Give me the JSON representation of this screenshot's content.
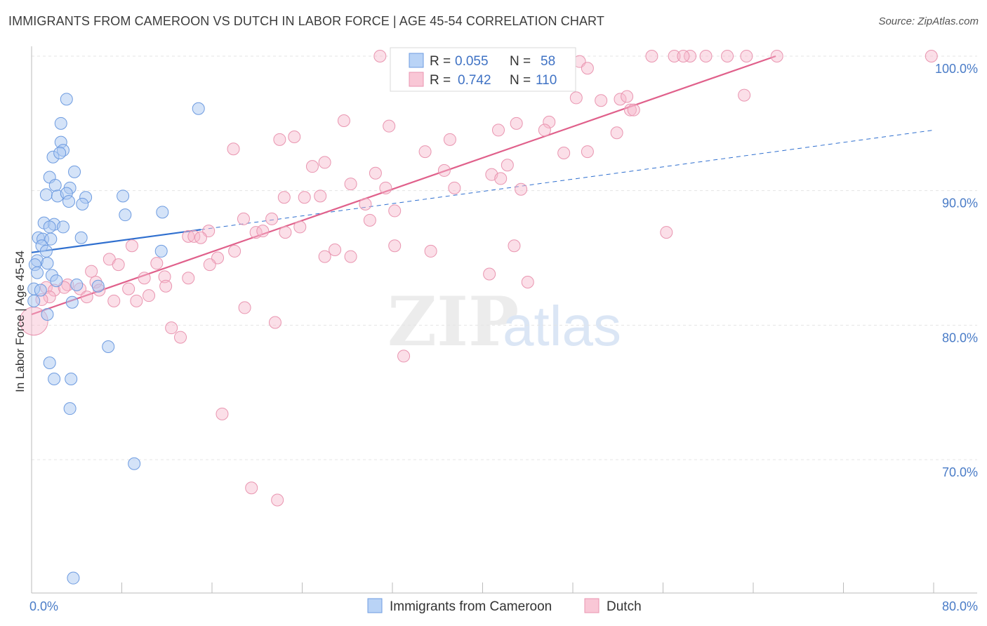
{
  "title": "IMMIGRANTS FROM CAMEROON VS DUTCH IN LABOR FORCE | AGE 45-54 CORRELATION CHART",
  "source": "Source: ZipAtlas.com",
  "watermark": {
    "zip": "ZIP",
    "atlas": "atlas"
  },
  "colors": {
    "blue_fill": "#a9c8f2",
    "blue_stroke": "#6d9be0",
    "blue_line": "#2f6fcf",
    "pink_fill": "#f6b9cc",
    "pink_stroke": "#e995b0",
    "pink_line": "#e0608b",
    "grid": "#e4e4e4",
    "tick_label": "#4a7cc7"
  },
  "legend": {
    "rows": [
      {
        "r_label": "R =",
        "r_value": "0.055",
        "n_label": "N =",
        "n_value": "58",
        "color": "blue"
      },
      {
        "r_label": "R =",
        "r_value": "0.742",
        "n_label": "N =",
        "n_value": "110",
        "color": "pink"
      }
    ]
  },
  "chart_data": {
    "type": "scatter",
    "title": "IMMIGRANTS FROM CAMEROON VS DUTCH IN LABOR FORCE | AGE 45-54 CORRELATION CHART",
    "xlabel": "",
    "ylabel": "In Labor Force | Age 45-54",
    "xlim": [
      0,
      80
    ],
    "ylim": [
      60.5,
      101.5
    ],
    "x_tick_labels": [
      {
        "value": 0,
        "label": "0.0%"
      },
      {
        "value": 80,
        "label": "80.0%"
      }
    ],
    "y_tick_labels": [
      {
        "value": 70,
        "label": "70.0%"
      },
      {
        "value": 80,
        "label": "80.0%"
      },
      {
        "value": 90,
        "label": "90.0%"
      },
      {
        "value": 100,
        "label": "100.0%"
      }
    ],
    "x_minor_ticks": [
      0,
      8,
      16,
      24,
      32,
      40,
      48,
      56,
      64,
      72,
      80
    ],
    "legend_placement": "top-center",
    "bottom_legend": [
      "Immigrants from Cameroon",
      "Dutch"
    ],
    "series": [
      {
        "name": "Immigrants from Cameroon",
        "color": "blue",
        "R": 0.055,
        "N": 58,
        "trend": {
          "x0": 0,
          "y0": 85.4,
          "x1": 15,
          "y1": 87.1,
          "dashed_to_x": 80,
          "dashed_to_y": 94.5
        },
        "points": [
          [
            3.1,
            96.8
          ],
          [
            14.8,
            96.1
          ],
          [
            2.6,
            95.0
          ],
          [
            2.6,
            93.6
          ],
          [
            2.8,
            93.0
          ],
          [
            1.9,
            92.5
          ],
          [
            2.5,
            92.8
          ],
          [
            3.8,
            91.4
          ],
          [
            1.6,
            91.0
          ],
          [
            2.1,
            90.4
          ],
          [
            3.4,
            90.2
          ],
          [
            1.3,
            89.7
          ],
          [
            2.3,
            89.6
          ],
          [
            3.1,
            89.8
          ],
          [
            4.8,
            89.5
          ],
          [
            8.1,
            89.6
          ],
          [
            3.3,
            89.2
          ],
          [
            4.5,
            89.0
          ],
          [
            11.6,
            88.4
          ],
          [
            8.3,
            88.2
          ],
          [
            1.1,
            87.6
          ],
          [
            2.0,
            87.5
          ],
          [
            1.6,
            87.3
          ],
          [
            2.8,
            87.3
          ],
          [
            0.6,
            86.5
          ],
          [
            1.0,
            86.4
          ],
          [
            1.7,
            86.4
          ],
          [
            4.4,
            86.5
          ],
          [
            0.9,
            85.9
          ],
          [
            1.3,
            85.5
          ],
          [
            11.5,
            85.5
          ],
          [
            0.5,
            84.8
          ],
          [
            1.4,
            84.6
          ],
          [
            0.3,
            84.5
          ],
          [
            0.5,
            83.9
          ],
          [
            1.8,
            83.7
          ],
          [
            2.2,
            83.3
          ],
          [
            4.0,
            83.0
          ],
          [
            5.9,
            82.9
          ],
          [
            0.2,
            82.7
          ],
          [
            0.8,
            82.6
          ],
          [
            3.6,
            81.7
          ],
          [
            0.2,
            81.8
          ],
          [
            1.4,
            80.8
          ],
          [
            6.8,
            78.4
          ],
          [
            1.6,
            77.2
          ],
          [
            2.0,
            76.0
          ],
          [
            3.5,
            76.0
          ],
          [
            3.4,
            73.8
          ],
          [
            9.1,
            69.7
          ],
          [
            3.7,
            61.2
          ]
        ]
      },
      {
        "name": "Dutch",
        "color": "pink",
        "R": 0.742,
        "N": 110,
        "trend": {
          "x0": 0,
          "y0": 80.8,
          "x1": 66,
          "y1": 100.0
        },
        "points": [
          [
            30.9,
            100.0
          ],
          [
            35.8,
            100.0
          ],
          [
            45.1,
            99.8
          ],
          [
            47.5,
            99.6
          ],
          [
            48.6,
            99.6
          ],
          [
            55.0,
            100.0
          ],
          [
            57.0,
            100.0
          ],
          [
            58.4,
            100.0
          ],
          [
            57.8,
            100.0
          ],
          [
            59.8,
            100.0
          ],
          [
            61.7,
            100.0
          ],
          [
            63.4,
            100.0
          ],
          [
            66.1,
            100.0
          ],
          [
            79.8,
            100.0
          ],
          [
            49.3,
            99.1
          ],
          [
            34.7,
            98.6
          ],
          [
            48.3,
            96.9
          ],
          [
            50.5,
            96.7
          ],
          [
            52.2,
            96.8
          ],
          [
            52.8,
            97.0
          ],
          [
            63.2,
            97.1
          ],
          [
            53.1,
            96.0
          ],
          [
            53.4,
            96.0
          ],
          [
            27.7,
            95.2
          ],
          [
            31.7,
            94.8
          ],
          [
            43.0,
            95.0
          ],
          [
            45.9,
            95.1
          ],
          [
            41.4,
            94.5
          ],
          [
            45.5,
            94.5
          ],
          [
            51.9,
            94.3
          ],
          [
            23.3,
            94.0
          ],
          [
            17.9,
            93.1
          ],
          [
            22.0,
            93.8
          ],
          [
            34.9,
            92.9
          ],
          [
            37.1,
            93.8
          ],
          [
            47.2,
            92.8
          ],
          [
            49.3,
            92.9
          ],
          [
            26.0,
            92.1
          ],
          [
            24.9,
            91.8
          ],
          [
            42.2,
            91.9
          ],
          [
            36.6,
            91.5
          ],
          [
            30.5,
            91.3
          ],
          [
            40.8,
            91.2
          ],
          [
            41.6,
            90.9
          ],
          [
            28.3,
            90.5
          ],
          [
            31.4,
            90.2
          ],
          [
            37.5,
            90.2
          ],
          [
            43.4,
            90.1
          ],
          [
            25.6,
            89.6
          ],
          [
            22.4,
            89.5
          ],
          [
            24.2,
            89.5
          ],
          [
            29.6,
            89.0
          ],
          [
            32.2,
            88.5
          ],
          [
            18.8,
            87.9
          ],
          [
            21.3,
            87.9
          ],
          [
            30.0,
            87.8
          ],
          [
            19.9,
            86.9
          ],
          [
            20.5,
            87.0
          ],
          [
            22.5,
            86.9
          ],
          [
            23.8,
            87.3
          ],
          [
            15.7,
            87.0
          ],
          [
            13.9,
            86.6
          ],
          [
            14.4,
            86.6
          ],
          [
            15.0,
            86.5
          ],
          [
            56.3,
            86.9
          ],
          [
            8.9,
            85.9
          ],
          [
            32.2,
            85.9
          ],
          [
            35.4,
            85.5
          ],
          [
            42.8,
            85.9
          ],
          [
            26.9,
            85.6
          ],
          [
            26.0,
            85.1
          ],
          [
            28.3,
            85.1
          ],
          [
            18.0,
            85.5
          ],
          [
            16.5,
            85.0
          ],
          [
            6.9,
            84.9
          ],
          [
            7.7,
            84.5
          ],
          [
            11.1,
            84.6
          ],
          [
            15.8,
            84.5
          ],
          [
            5.3,
            84.0
          ],
          [
            10.0,
            83.5
          ],
          [
            11.8,
            83.6
          ],
          [
            13.9,
            83.5
          ],
          [
            40.6,
            83.8
          ],
          [
            44.0,
            83.2
          ],
          [
            5.7,
            83.2
          ],
          [
            3.2,
            83.0
          ],
          [
            1.3,
            82.8
          ],
          [
            2.0,
            82.6
          ],
          [
            2.9,
            82.8
          ],
          [
            4.3,
            82.7
          ],
          [
            6.0,
            82.6
          ],
          [
            8.6,
            82.7
          ],
          [
            11.9,
            82.9
          ],
          [
            1.6,
            82.1
          ],
          [
            4.9,
            82.1
          ],
          [
            7.3,
            81.8
          ],
          [
            9.3,
            81.8
          ],
          [
            10.4,
            82.2
          ],
          [
            0.9,
            81.9
          ],
          [
            18.9,
            81.3
          ],
          [
            21.6,
            80.2
          ],
          [
            12.4,
            79.8
          ],
          [
            13.2,
            79.1
          ],
          [
            33.0,
            77.7
          ],
          [
            16.9,
            73.4
          ],
          [
            19.5,
            67.9
          ],
          [
            21.8,
            67.0
          ],
          [
            0.2,
            80.3
          ]
        ]
      }
    ]
  }
}
